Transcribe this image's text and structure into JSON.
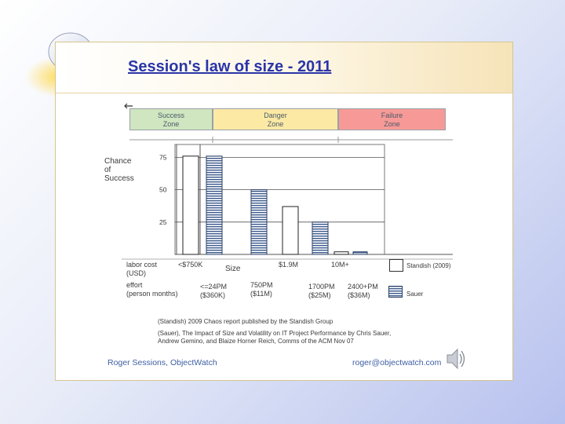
{
  "slide": {
    "title": "Session's law of size - 2011",
    "footer_left": "Roger Sessions, ObjectWatch",
    "footer_right": "roger@objectwatch.com",
    "icons": [
      "lightbulb-icon",
      "speaker-icon",
      "arrow-left-icon"
    ]
  },
  "zones": [
    {
      "line1": "Success",
      "line2": "Zone",
      "color": "#cfe6c0"
    },
    {
      "line1": "Danger",
      "line2": "Zone",
      "color": "#fce9a4"
    },
    {
      "line1": "Failure",
      "line2": "Zone",
      "color": "#f79a97"
    }
  ],
  "labels": {
    "ylabel_1": "Chance",
    "ylabel_2": "of",
    "ylabel_3": "Success",
    "labor_cost_1": "labor cost",
    "labor_cost_2": "(USD)",
    "effort_1": "effort",
    "effort_2": "(person months)",
    "size": "Size",
    "cost_ticks": [
      "<$750K",
      "$1.9M",
      "10M+"
    ],
    "effort_ticks": [
      {
        "line1": "<=24PM",
        "line2": "($360K)"
      },
      {
        "line1": "750PM",
        "line2": "($11M)"
      },
      {
        "line1": "1700PM",
        "line2": "($25M)"
      },
      {
        "line1": "2400+PM",
        "line2": "($36M)"
      }
    ],
    "legend": [
      {
        "name": "Standish (2009)",
        "pattern": "plain"
      },
      {
        "name": "Sauer",
        "pattern": "striped"
      }
    ],
    "source_1": "(Standish) 2009 Chaos report published by the Standish Group",
    "source_2": "(Sauer), The Impact of Size and Volatility on IT Project Performance by Chris Sauer,",
    "source_3": "Andrew Gemino, and Blaize Horner Reich, Comms of the ACM Nov 07"
  },
  "chart_data": {
    "type": "bar",
    "title": "Session's law of size - 2011",
    "ylabel": "Chance of Success",
    "xlabel": "Size",
    "yticks": [
      25,
      50,
      75
    ],
    "ylim": [
      0,
      85
    ],
    "series": [
      {
        "name": "Standish (2009)",
        "pattern": "plain",
        "points": [
          {
            "category": "<$750K",
            "value": 76
          },
          {
            "category": "$1.9M",
            "value": 37
          },
          {
            "category": "10M+",
            "value": 2
          }
        ]
      },
      {
        "name": "Sauer",
        "pattern": "striped",
        "points": [
          {
            "category": "<=24PM ($360K)",
            "value": 76
          },
          {
            "category": "750PM ($11M)",
            "value": 50
          },
          {
            "category": "1700PM ($25M)",
            "value": 25
          },
          {
            "category": "2400+PM ($36M)",
            "value": 2
          }
        ]
      }
    ]
  }
}
